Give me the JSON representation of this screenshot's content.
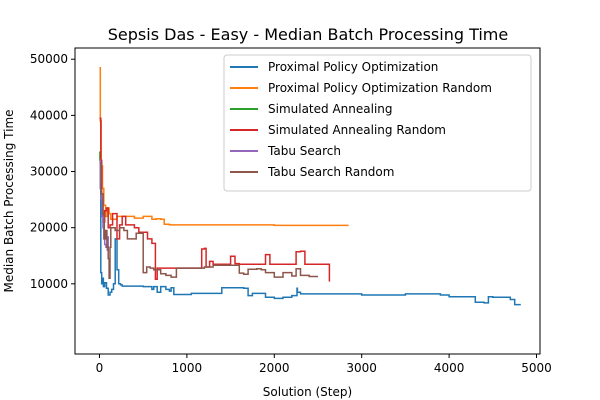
{
  "chart_data": {
    "type": "line",
    "title": "Sepsis Das - Easy - Median Batch Processing Time",
    "xlabel": "Solution (Step)",
    "ylabel": "Median Batch Processing Time",
    "xlim": [
      -280,
      5040
    ],
    "ylim": [
      -2500,
      52000
    ],
    "xticks": [
      0,
      1000,
      2000,
      3000,
      4000,
      5000
    ],
    "xtick_labels": [
      "0",
      "1000",
      "2000",
      "3000",
      "4000",
      "5000"
    ],
    "yticks": [
      10000,
      20000,
      30000,
      40000,
      50000
    ],
    "ytick_labels": [
      "10000",
      "20000",
      "30000",
      "40000",
      "50000"
    ],
    "grid": false,
    "legend_position": "top-right",
    "series": [
      {
        "name": "Proximal Policy Optimization",
        "color": "#1f77b4",
        "x": [
          0,
          15,
          25,
          35,
          45,
          60,
          80,
          100,
          120,
          140,
          160,
          180,
          200,
          220,
          240,
          260,
          300,
          500,
          600,
          620,
          660,
          700,
          760,
          800,
          820,
          850,
          1000,
          1050,
          1250,
          1400,
          1650,
          1700,
          1750,
          1900,
          2000,
          2100,
          2200,
          2260,
          2265,
          2300,
          2800,
          3000,
          3300,
          3500,
          3900,
          4000,
          4150,
          4300,
          4400,
          4450,
          4500,
          4700,
          4750,
          4820
        ],
        "y": [
          32000,
          12000,
          10000,
          11000,
          9500,
          10200,
          9200,
          8000,
          8500,
          9000,
          10000,
          18000,
          12500,
          10000,
          9800,
          9600,
          9600,
          9500,
          9000,
          9500,
          8500,
          9500,
          9000,
          8700,
          9300,
          8100,
          8100,
          8300,
          8300,
          9300,
          9200,
          7900,
          8300,
          7600,
          7400,
          7600,
          7900,
          9200,
          8500,
          8200,
          8200,
          8000,
          8000,
          8200,
          8000,
          7700,
          7700,
          6700,
          6600,
          7700,
          7600,
          7200,
          6300,
          6300
        ]
      },
      {
        "name": "Proximal Policy Optimization Random",
        "color": "#ff7f0e",
        "x": [
          0,
          10,
          20,
          35,
          50,
          70,
          90,
          110,
          130,
          160,
          200,
          400,
          500,
          600,
          650,
          700,
          740,
          800,
          1800,
          2000,
          2850
        ],
        "y": [
          48500,
          39000,
          31000,
          27000,
          24000,
          22000,
          23500,
          22500,
          21500,
          21500,
          22000,
          21700,
          22000,
          21500,
          21600,
          21500,
          20600,
          20500,
          20500,
          20400,
          20400
        ]
      },
      {
        "name": "Simulated Annealing",
        "color": "#2ca02c",
        "x": [
          0,
          5,
          10,
          20
        ],
        "y": [
          33500,
          32000,
          27000,
          25000
        ]
      },
      {
        "name": "Simulated Annealing Random",
        "color": "#d62728",
        "x": [
          0,
          15,
          25,
          40,
          60,
          80,
          100,
          120,
          150,
          200,
          230,
          260,
          300,
          400,
          450,
          550,
          600,
          640,
          660,
          1000,
          1150,
          1170,
          1200,
          1220,
          1260,
          1300,
          1500,
          1550,
          1600,
          1800,
          1900,
          1950,
          2200,
          2250,
          2300,
          2350,
          2600,
          2630
        ],
        "y": [
          39500,
          32000,
          26000,
          21000,
          23000,
          23500,
          20000,
          20500,
          22500,
          18000,
          20500,
          22000,
          20500,
          20000,
          19200,
          18000,
          17200,
          10800,
          12800,
          12800,
          12800,
          16200,
          16300,
          13000,
          14000,
          13500,
          14900,
          13600,
          13500,
          13500,
          15200,
          13500,
          13500,
          15700,
          15800,
          13500,
          13500,
          10400
        ]
      },
      {
        "name": "Tabu Search",
        "color": "#9467bd",
        "x": [
          0,
          10,
          20,
          30,
          40,
          50,
          60,
          75,
          90,
          100
        ],
        "y": [
          32000,
          27000,
          25000,
          22000,
          20000,
          18000,
          17000,
          16500,
          16000,
          18500
        ]
      },
      {
        "name": "Tabu Search Random",
        "color": "#8c564b",
        "x": [
          0,
          20,
          40,
          55,
          70,
          85,
          100,
          110,
          120,
          130,
          180,
          230,
          280,
          320,
          420,
          500,
          540,
          580,
          620,
          700,
          760,
          820,
          880,
          1000,
          1100,
          1200,
          1300,
          1500,
          1600,
          1650,
          1700,
          1800,
          1850,
          1900,
          2000,
          2100,
          2200,
          2250,
          2300,
          2400,
          2500
        ],
        "y": [
          31500,
          26000,
          22500,
          18000,
          19500,
          16500,
          14500,
          11000,
          16500,
          20000,
          19500,
          20000,
          19500,
          18000,
          19000,
          12000,
          13000,
          12800,
          12500,
          11800,
          11500,
          11200,
          12800,
          12800,
          12800,
          13000,
          13300,
          13300,
          11900,
          11700,
          12600,
          12700,
          12500,
          12000,
          11200,
          12000,
          11400,
          12700,
          11500,
          11300,
          11300
        ]
      }
    ]
  }
}
